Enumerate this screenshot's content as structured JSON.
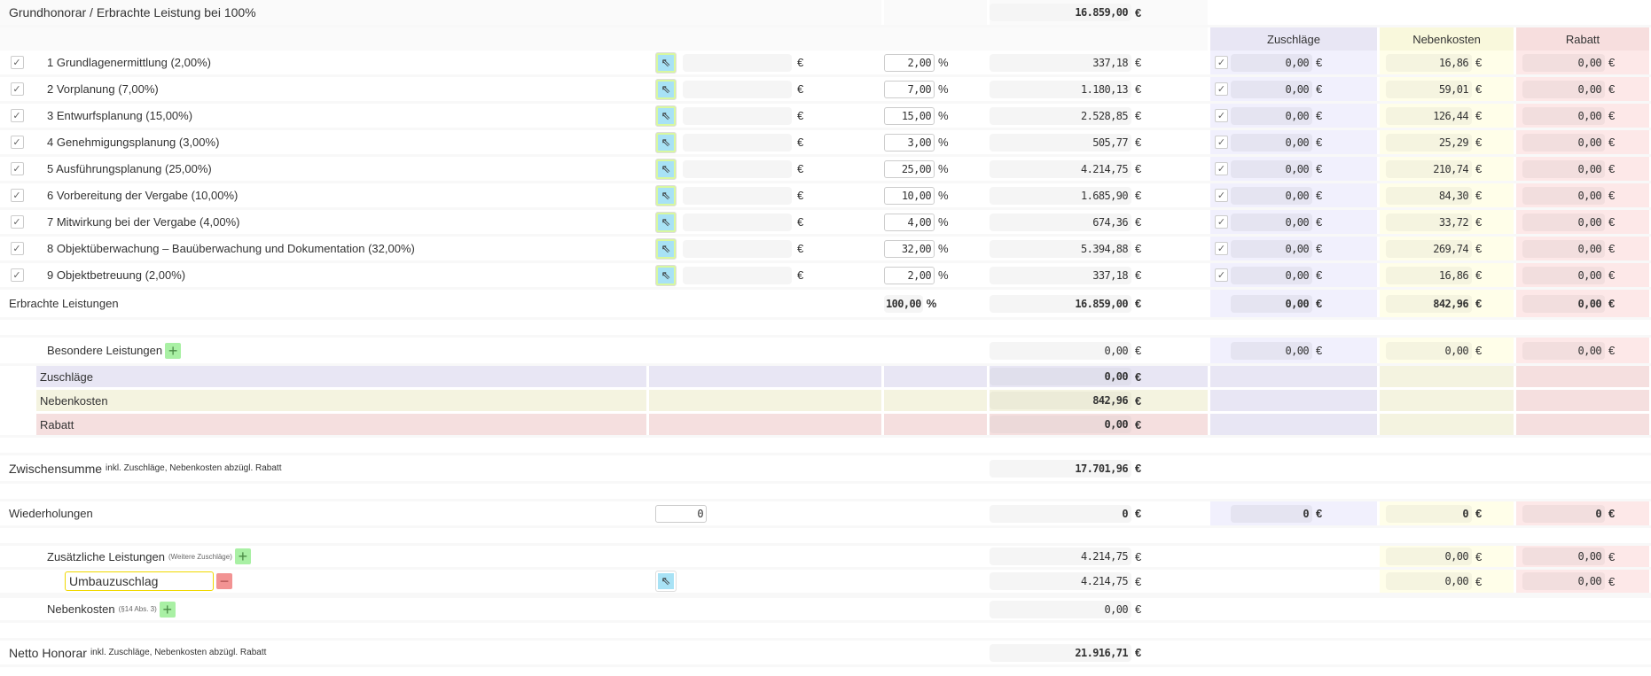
{
  "title": "Grundhonorar / Erbrachte Leistung bei 100%",
  "title_amount": "16.859,00",
  "currency": "€",
  "percent": "%",
  "columns": {
    "zuschlaege": "Zuschläge",
    "nebenkosten": "Nebenkosten",
    "rabatt": "Rabatt"
  },
  "phases": [
    {
      "label": "1 Grundlagenermittlung (2,00%)",
      "pct": "2,00",
      "amount": "337,18",
      "zu": "0,00",
      "nk": "16,86",
      "rb": "0,00"
    },
    {
      "label": "2 Vorplanung (7,00%)",
      "pct": "7,00",
      "amount": "1.180,13",
      "zu": "0,00",
      "nk": "59,01",
      "rb": "0,00"
    },
    {
      "label": "3 Entwurfsplanung (15,00%)",
      "pct": "15,00",
      "amount": "2.528,85",
      "zu": "0,00",
      "nk": "126,44",
      "rb": "0,00"
    },
    {
      "label": "4 Genehmigungsplanung (3,00%)",
      "pct": "3,00",
      "amount": "505,77",
      "zu": "0,00",
      "nk": "25,29",
      "rb": "0,00"
    },
    {
      "label": "5 Ausführungsplanung (25,00%)",
      "pct": "25,00",
      "amount": "4.214,75",
      "zu": "0,00",
      "nk": "210,74",
      "rb": "0,00"
    },
    {
      "label": "6 Vorbereitung der Vergabe (10,00%)",
      "pct": "10,00",
      "amount": "1.685,90",
      "zu": "0,00",
      "nk": "84,30",
      "rb": "0,00"
    },
    {
      "label": "7 Mitwirkung bei der Vergabe (4,00%)",
      "pct": "4,00",
      "amount": "674,36",
      "zu": "0,00",
      "nk": "33,72",
      "rb": "0,00"
    },
    {
      "label": "8 Objektüberwachung – Bauüberwachung und Dokumentation (32,00%)",
      "pct": "32,00",
      "amount": "5.394,88",
      "zu": "0,00",
      "nk": "269,74",
      "rb": "0,00"
    },
    {
      "label": "9 Objektbetreuung (2,00%)",
      "pct": "2,00",
      "amount": "337,18",
      "zu": "0,00",
      "nk": "16,86",
      "rb": "0,00"
    }
  ],
  "erbracht": {
    "label": "Erbrachte Leistungen",
    "pct": "100,00",
    "amount": "16.859,00",
    "zu": "0,00",
    "nk": "842,96",
    "rb": "0,00"
  },
  "besondere": {
    "label": "Besondere Leistungen",
    "amount": "0,00",
    "zu": "0,00",
    "nk": "0,00",
    "rb": "0,00"
  },
  "summary": {
    "zu_label": "Zuschläge",
    "zu": "0,00",
    "nk_label": "Nebenkosten",
    "nk": "842,96",
    "rb_label": "Rabatt",
    "rb": "0,00"
  },
  "zwischensumme": {
    "label": "Zwischensumme",
    "note": "inkl. Zuschläge, Nebenkosten abzügl. Rabatt",
    "amount": "17.701,96"
  },
  "wiederholungen": {
    "label": "Wiederholungen",
    "count": "0",
    "amount": "0",
    "zu": "0",
    "nk": "0",
    "rb": "0"
  },
  "zusaetzlich": {
    "label": "Zusätzliche Leistungen",
    "note": "(Weitere Zuschläge)",
    "amount": "4.214,75",
    "nk": "0,00",
    "rb": "0,00",
    "item": {
      "name": "Umbauzuschlag",
      "amount": "4.214,75",
      "nk": "0,00",
      "rb": "0,00"
    }
  },
  "nebenkosten": {
    "label": "Nebenkosten",
    "note": "(§14 Abs. 3)",
    "amount": "0,00"
  },
  "netto": {
    "label": "Netto Honorar",
    "note": "inkl. Zuschläge, Nebenkosten abzügl. Rabatt",
    "amount": "21.916,71"
  },
  "colors": {
    "zuschlaege": "#f1f0fd",
    "nebenkosten": "#fffee9",
    "rabatt": "#fde8e8",
    "add": "#a9f0a4",
    "remove": "#f29393"
  }
}
